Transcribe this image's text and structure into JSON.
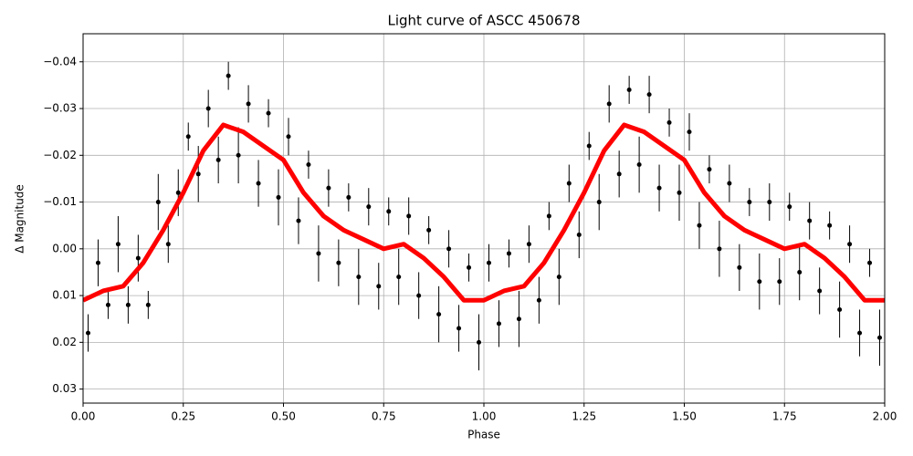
{
  "chart_data": {
    "type": "scatter",
    "title": "Light curve of ASCC 450678",
    "x_label": "Phase",
    "y_label": "Δ Magnitude",
    "xlim": [
      0,
      2
    ],
    "ylim": [
      0.033,
      -0.046
    ],
    "xticks": [
      {
        "value": 0,
        "label": "0.00"
      },
      {
        "value": 0.25,
        "label": "0.25"
      },
      {
        "value": 0.5,
        "label": "0.50"
      },
      {
        "value": 0.75,
        "label": "0.75"
      },
      {
        "value": 1,
        "label": "1.00"
      },
      {
        "value": 1.25,
        "label": "1.25"
      },
      {
        "value": 1.5,
        "label": "1.50"
      },
      {
        "value": 1.75,
        "label": "1.75"
      },
      {
        "value": 2,
        "label": "2.00"
      }
    ],
    "yticks": [
      {
        "value": -0.04,
        "label": "−0.04"
      },
      {
        "value": -0.03,
        "label": "−0.03"
      },
      {
        "value": -0.02,
        "label": "−0.02"
      },
      {
        "value": -0.01,
        "label": "−0.01"
      },
      {
        "value": 0,
        "label": "0.00"
      },
      {
        "value": 0.01,
        "label": "0.01"
      },
      {
        "value": 0.02,
        "label": "0.02"
      },
      {
        "value": 0.03,
        "label": "0.03"
      }
    ],
    "grid": true,
    "series": [
      {
        "type": "errorbar",
        "color": "#000000",
        "x": [
          0.0125,
          0.0375,
          0.0625,
          0.0875,
          0.1125,
          0.1375,
          0.1625,
          0.1875,
          0.2125,
          0.2375,
          0.2625,
          0.2875,
          0.3125,
          0.3375,
          0.3625,
          0.3875,
          0.4125,
          0.4375,
          0.4625,
          0.4875,
          0.5125,
          0.5375,
          0.5625,
          0.5875,
          0.6125,
          0.6375,
          0.6625,
          0.6875,
          0.7125,
          0.7375,
          0.7625,
          0.7875,
          0.8125,
          0.8375,
          0.8625,
          0.8875,
          0.9125,
          0.9375,
          0.9625,
          0.9875,
          1.0125,
          1.0375,
          1.0625,
          1.0875,
          1.1125,
          1.1375,
          1.1625,
          1.1875,
          1.2125,
          1.2375,
          1.2625,
          1.2875,
          1.3125,
          1.3375,
          1.3625,
          1.3875,
          1.4125,
          1.4375,
          1.4625,
          1.4875,
          1.5125,
          1.5375,
          1.5625,
          1.5875,
          1.6125,
          1.6375,
          1.6625,
          1.6875,
          1.7125,
          1.7375,
          1.7625,
          1.7875,
          1.8125,
          1.8375,
          1.8625,
          1.8875,
          1.9125,
          1.9375,
          1.9625,
          1.9875
        ],
        "values": [
          0.018,
          0.003,
          0.012,
          -0.001,
          0.012,
          0.002,
          0.012,
          -0.01,
          -0.001,
          -0.012,
          -0.024,
          -0.016,
          -0.03,
          -0.019,
          -0.037,
          -0.02,
          -0.031,
          -0.014,
          -0.029,
          -0.011,
          -0.024,
          -0.006,
          -0.018,
          0.001,
          -0.013,
          0.003,
          -0.011,
          0.006,
          -0.009,
          0.008,
          -0.008,
          0.006,
          -0.007,
          0.01,
          -0.004,
          0.014,
          0.0,
          0.017,
          0.004,
          0.02,
          0.003,
          0.016,
          0.001,
          0.015,
          -0.001,
          0.011,
          -0.007,
          0.006,
          -0.014,
          -0.003,
          -0.022,
          -0.01,
          -0.031,
          -0.016,
          -0.034,
          -0.018,
          -0.033,
          -0.013,
          -0.027,
          -0.012,
          -0.025,
          -0.005,
          -0.017,
          0.0,
          -0.014,
          0.004,
          -0.01,
          0.007,
          -0.01,
          0.007,
          -0.009,
          0.005,
          -0.006,
          0.009,
          -0.005,
          0.013,
          -0.001,
          0.018,
          0.003,
          0.019
        ],
        "errors": [
          0.004,
          0.005,
          0.003,
          0.006,
          0.004,
          0.005,
          0.003,
          0.006,
          0.004,
          0.005,
          0.003,
          0.006,
          0.004,
          0.005,
          0.003,
          0.006,
          0.004,
          0.005,
          0.003,
          0.006,
          0.004,
          0.005,
          0.003,
          0.006,
          0.004,
          0.005,
          0.003,
          0.006,
          0.004,
          0.005,
          0.003,
          0.006,
          0.004,
          0.005,
          0.003,
          0.006,
          0.004,
          0.005,
          0.003,
          0.006,
          0.004,
          0.005,
          0.003,
          0.006,
          0.004,
          0.005,
          0.003,
          0.006,
          0.004,
          0.005,
          0.003,
          0.006,
          0.004,
          0.005,
          0.003,
          0.006,
          0.004,
          0.005,
          0.003,
          0.006,
          0.004,
          0.005,
          0.003,
          0.006,
          0.004,
          0.005,
          0.003,
          0.006,
          0.004,
          0.005,
          0.003,
          0.006,
          0.004,
          0.005,
          0.003,
          0.006,
          0.004,
          0.005,
          0.003,
          0.006
        ]
      },
      {
        "type": "line",
        "color": "#ff0000",
        "x": [
          0,
          0.05,
          0.1,
          0.15,
          0.2,
          0.25,
          0.3,
          0.35,
          0.4,
          0.45,
          0.5,
          0.55,
          0.6,
          0.65,
          0.7,
          0.75,
          0.8,
          0.85,
          0.9,
          0.95,
          1,
          1.05,
          1.1,
          1.15,
          1.2,
          1.25,
          1.3,
          1.35,
          1.4,
          1.45,
          1.5,
          1.55,
          1.6,
          1.65,
          1.7,
          1.75,
          1.8,
          1.85,
          1.9,
          1.95,
          2
        ],
        "values": [
          0.011,
          0.009,
          0.008,
          0.003,
          -0.004,
          -0.012,
          -0.021,
          -0.0265,
          -0.025,
          -0.022,
          -0.019,
          -0.012,
          -0.007,
          -0.004,
          -0.002,
          0.0,
          -0.001,
          0.002,
          0.006,
          0.011,
          0.011,
          0.009,
          0.008,
          0.003,
          -0.004,
          -0.012,
          -0.021,
          -0.0265,
          -0.025,
          -0.022,
          -0.019,
          -0.012,
          -0.007,
          -0.004,
          -0.002,
          0.0,
          -0.001,
          0.002,
          0.006,
          0.011,
          0.011
        ]
      }
    ]
  }
}
